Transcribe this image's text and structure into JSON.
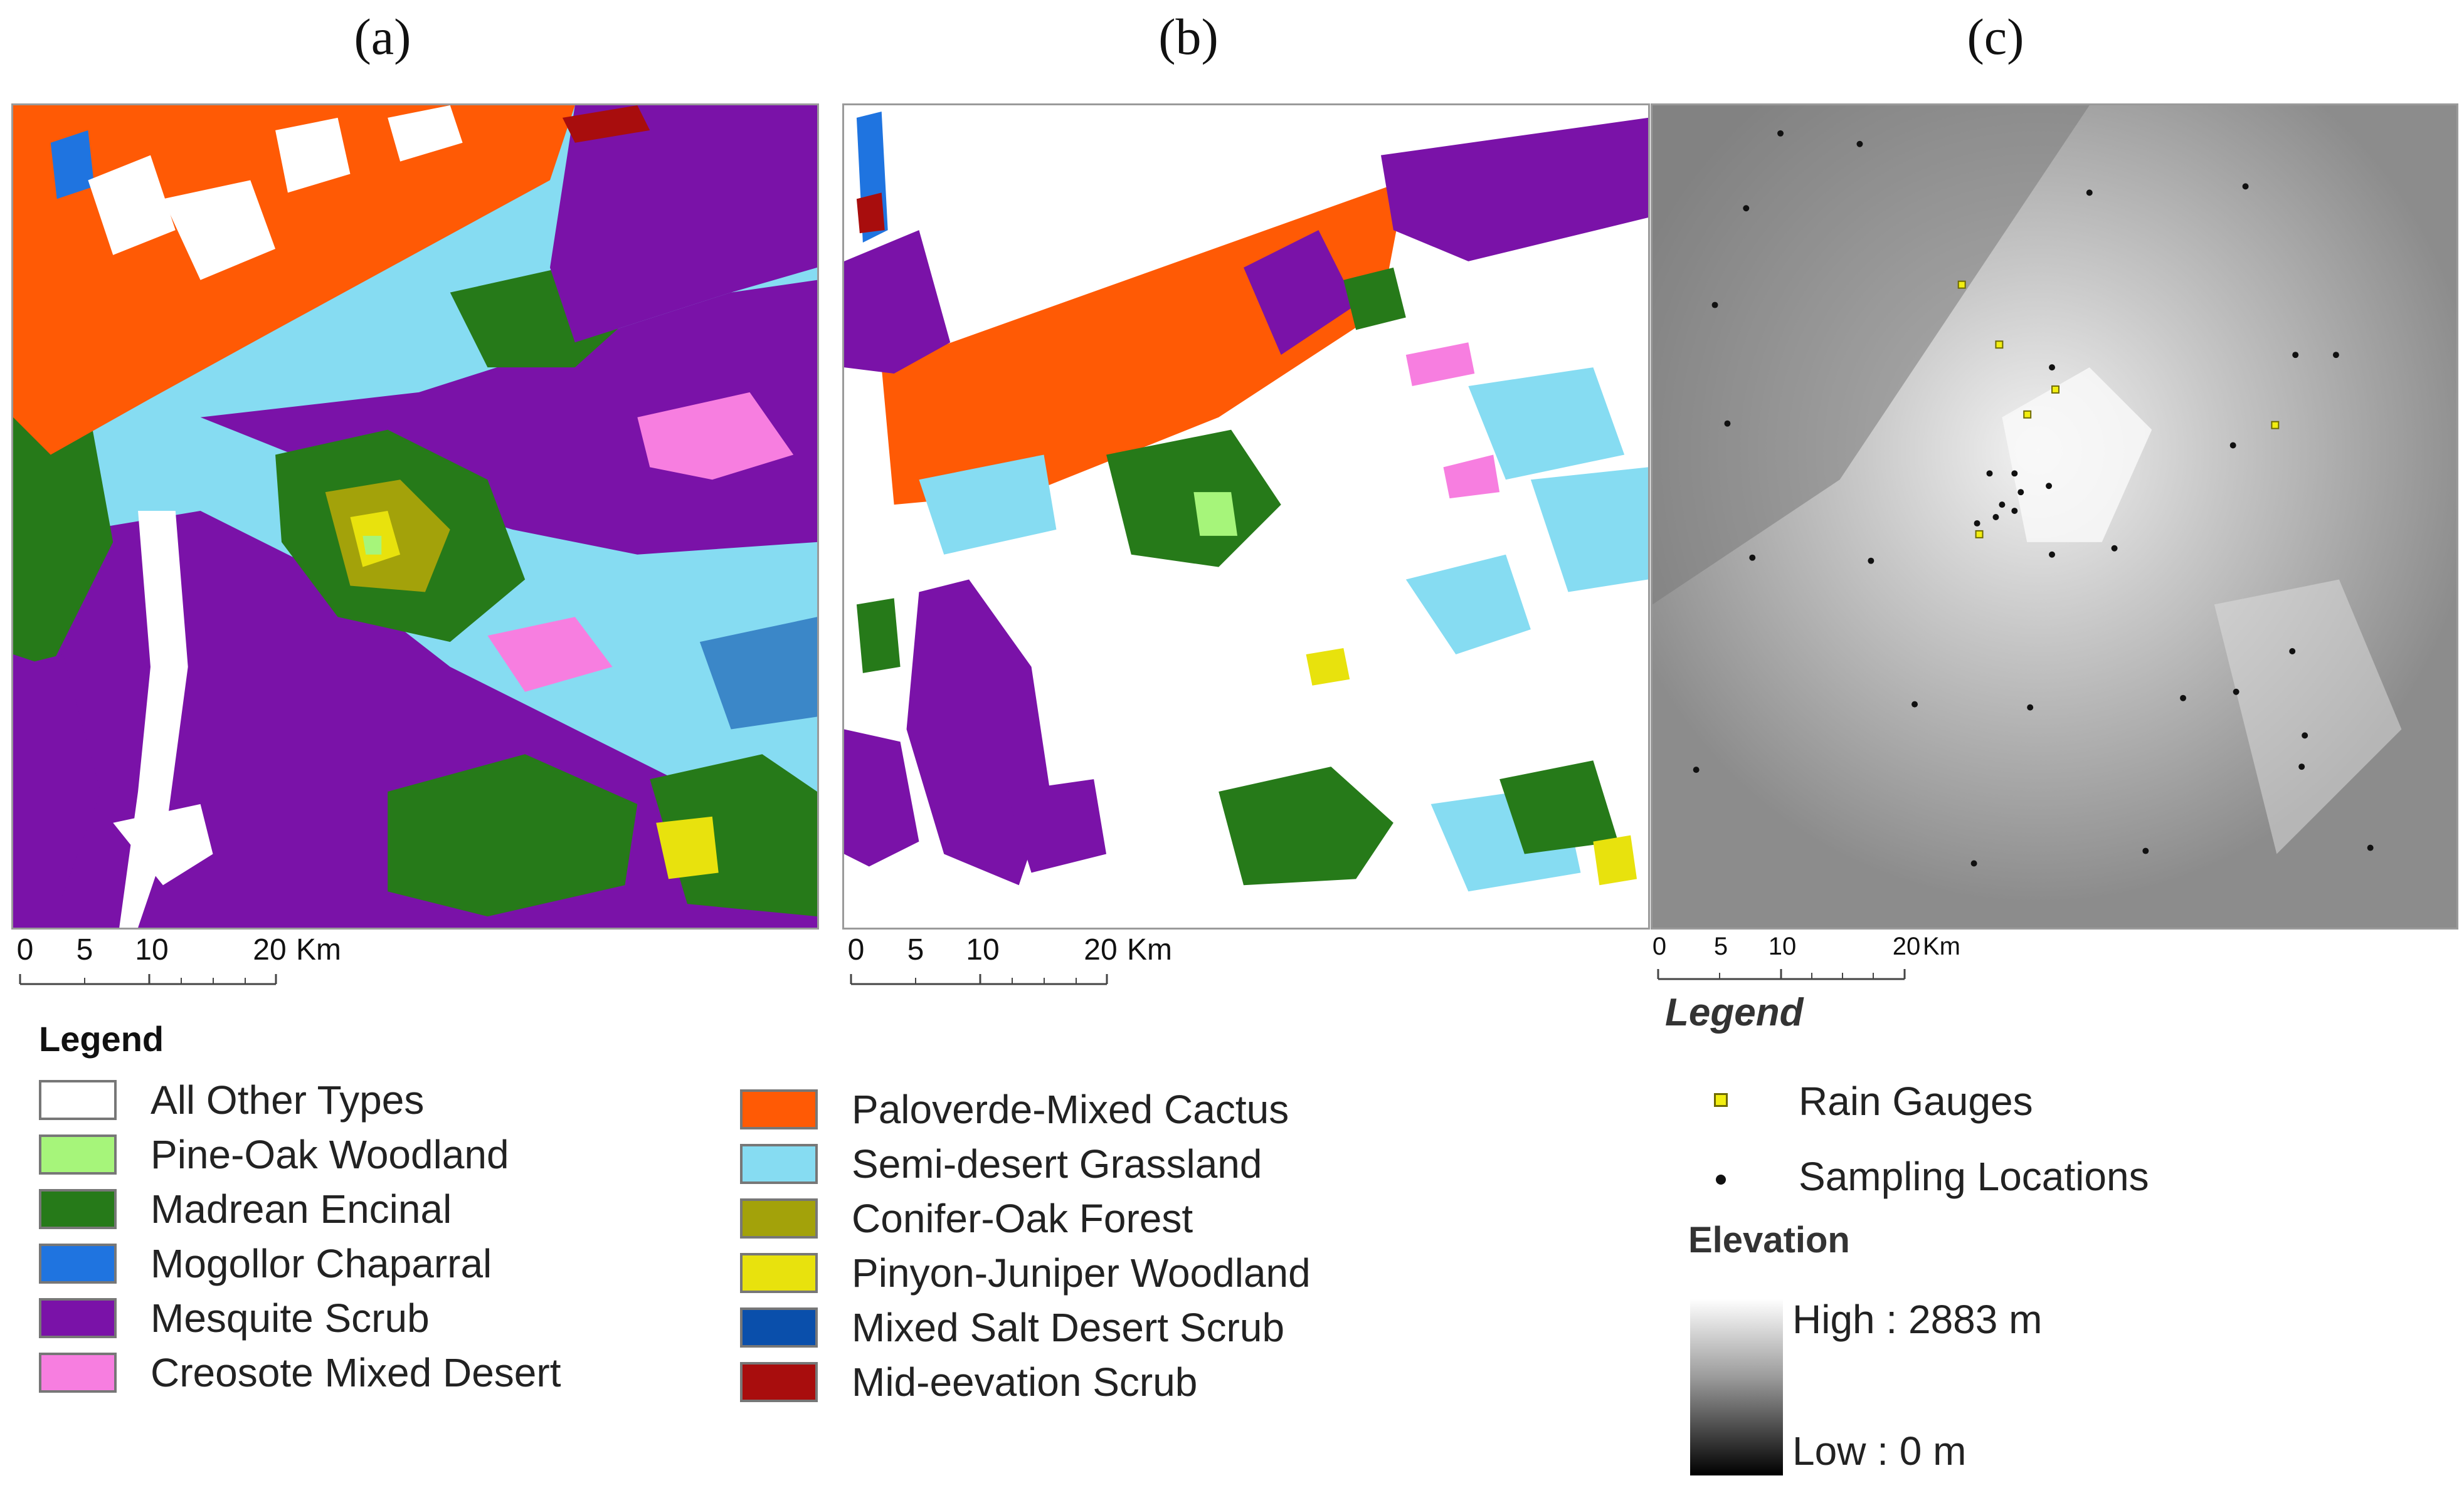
{
  "panels": [
    {
      "label": "(a)"
    },
    {
      "label": "(b)"
    },
    {
      "label": "(c)"
    }
  ],
  "scale_bar": {
    "ticks": [
      "0",
      "5",
      "10",
      "20"
    ],
    "unit": "Km"
  },
  "vegetation_legend": {
    "title": "Legend",
    "left_column": [
      {
        "label": "All Other Types",
        "color": "#ffffff"
      },
      {
        "label": "Pine-Oak Woodland",
        "color": "#a6f57a"
      },
      {
        "label": "Madrean Encinal",
        "color": "#267a19"
      },
      {
        "label": "Mogollor Chaparral",
        "color": "#1f74e0"
      },
      {
        "label": "Mesquite Scrub",
        "color": "#7a12a8"
      },
      {
        "label": "Creosote Mixed Desert",
        "color": "#f77ee0"
      }
    ],
    "right_column": [
      {
        "label": "Paloverde-Mixed Cactus",
        "color": "#ff5a05"
      },
      {
        "label": "Semi-desert Grassland",
        "color": "#86dcf2"
      },
      {
        "label": "Conifer-Oak Forest",
        "color": "#a3a20a"
      },
      {
        "label": "Pinyon-Juniper Woodland",
        "color": "#e8e20d"
      },
      {
        "label": "Mixed Salt Desert Scrub",
        "color": "#0a4fab"
      },
      {
        "label": "Mid-eevation Scrub",
        "color": "#a80d0d"
      }
    ]
  },
  "elevation_legend": {
    "title": "Legend",
    "rain_gauges": "Rain Gauges",
    "sampling_locations": "Sampling Locations",
    "elevation_title": "Elevation",
    "high": "High : 2883 m",
    "low": "Low : 0 m",
    "gauge_color": "#f2ee10"
  }
}
